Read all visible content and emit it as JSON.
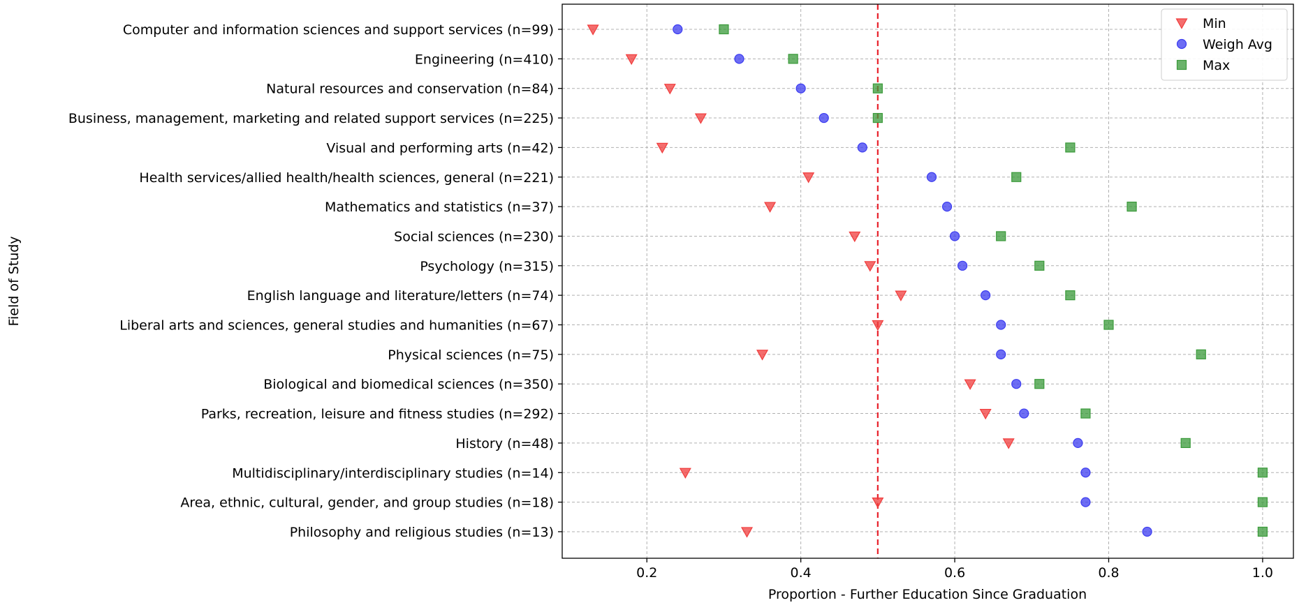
{
  "chart_data": {
    "type": "scatter",
    "xlabel": "Proportion - Further Education Since Graduation",
    "ylabel": "Field of Study",
    "xlim": [
      0.09,
      1.04
    ],
    "xticks": [
      0.2,
      0.4,
      0.6,
      0.8,
      1.0
    ],
    "xtick_labels": [
      "0.2",
      "0.4",
      "0.6",
      "0.8",
      "1.0"
    ],
    "grid": true,
    "reference_line": {
      "x": 0.5,
      "color": "#e8212b",
      "style": "dashed"
    },
    "legend_position": "top-right",
    "categories": [
      "Computer and information sciences and support services (n=99)",
      "Engineering (n=410)",
      "Natural resources and conservation (n=84)",
      "Business, management, marketing and related support services (n=225)",
      "Visual and performing arts (n=42)",
      "Health services/allied health/health sciences, general (n=221)",
      "Mathematics and statistics (n=37)",
      "Social sciences (n=230)",
      "Psychology (n=315)",
      "English language and literature/letters (n=74)",
      "Liberal arts and sciences, general studies and humanities (n=67)",
      "Physical sciences (n=75)",
      "Biological and biomedical sciences (n=350)",
      "Parks, recreation, leisure and fitness studies (n=292)",
      "History (n=48)",
      "Multidisciplinary/interdisciplinary studies (n=14)",
      "Area, ethnic, cultural, gender, and group studies (n=18)",
      "Philosophy and religious studies (n=13)"
    ],
    "series": [
      {
        "name": "Min",
        "marker": "triangle-down",
        "color": "#f03c3c",
        "values": [
          0.13,
          0.18,
          0.23,
          0.27,
          0.22,
          0.41,
          0.36,
          0.47,
          0.49,
          0.53,
          0.5,
          0.35,
          0.62,
          0.64,
          0.67,
          0.25,
          0.5,
          0.33
        ]
      },
      {
        "name": "Weigh Avg",
        "marker": "circle",
        "color": "#3c3cf0",
        "values": [
          0.24,
          0.32,
          0.4,
          0.43,
          0.48,
          0.57,
          0.59,
          0.6,
          0.61,
          0.64,
          0.66,
          0.66,
          0.68,
          0.69,
          0.76,
          0.77,
          0.77,
          0.85
        ]
      },
      {
        "name": "Max",
        "marker": "square",
        "color": "#3a9a3a",
        "values": [
          0.3,
          0.39,
          0.5,
          0.5,
          0.75,
          0.68,
          0.83,
          0.66,
          0.71,
          0.75,
          0.8,
          0.92,
          0.71,
          0.77,
          0.9,
          1.0,
          1.0,
          1.0
        ]
      }
    ]
  }
}
